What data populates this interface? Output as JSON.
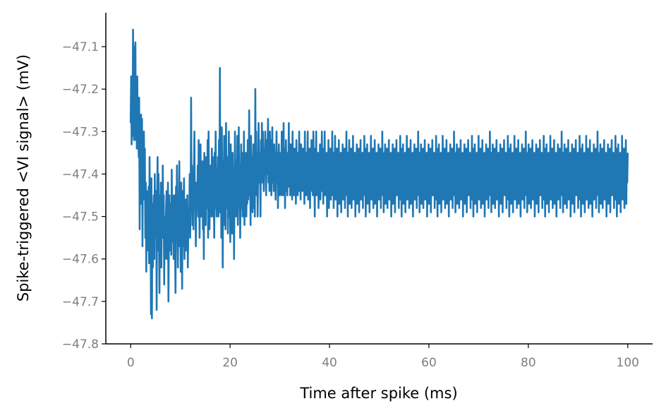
{
  "chart_data": {
    "type": "line",
    "title": "",
    "xlabel": "Time after spike (ms)",
    "ylabel": "Spike-triggered <VI signal> (mV)",
    "xlim": [
      -5,
      105
    ],
    "ylim": [
      -47.8,
      -47.02
    ],
    "x_ticks": [
      0,
      20,
      40,
      60,
      80,
      100
    ],
    "x_tick_labels": [
      "0",
      "20",
      "40",
      "60",
      "80",
      "100"
    ],
    "y_ticks": [
      -47.8,
      -47.7,
      -47.6,
      -47.5,
      -47.4,
      -47.3,
      -47.2,
      -47.1
    ],
    "y_tick_labels": [
      "−47.8",
      "−47.7",
      "−47.6",
      "−47.5",
      "−47.4",
      "−47.3",
      "−47.2",
      "−47.1"
    ],
    "grid": false,
    "legend": "none",
    "colors": {
      "line": "#1f77b4",
      "axis": "#000000",
      "tick_label": "#7f7f7f"
    },
    "series": [
      {
        "sample_interval_ms": 0.1,
        "x_start": 0,
        "x_end": 100,
        "values": [
          -47.28,
          -47.17,
          -47.33,
          -47.2,
          -47.31,
          -47.06,
          -47.25,
          -47.32,
          -47.1,
          -47.3,
          -47.09,
          -47.32,
          -47.2,
          -47.34,
          -47.17,
          -47.3,
          -47.25,
          -47.36,
          -47.22,
          -47.53,
          -47.32,
          -47.47,
          -47.26,
          -47.35,
          -47.27,
          -47.57,
          -47.31,
          -47.46,
          -47.3,
          -47.4,
          -47.34,
          -47.55,
          -47.42,
          -47.63,
          -47.44,
          -47.51,
          -47.47,
          -47.58,
          -47.43,
          -47.61,
          -47.36,
          -47.5,
          -47.44,
          -47.73,
          -47.41,
          -47.74,
          -47.47,
          -47.62,
          -47.5,
          -47.45,
          -47.6,
          -47.4,
          -47.55,
          -47.52,
          -47.44,
          -47.72,
          -47.46,
          -47.36,
          -47.58,
          -47.4,
          -47.55,
          -47.68,
          -47.45,
          -47.55,
          -47.42,
          -47.62,
          -47.48,
          -47.55,
          -47.38,
          -47.53,
          -47.45,
          -47.66,
          -47.5,
          -47.6,
          -47.56,
          -47.48,
          -47.44,
          -47.6,
          -47.55,
          -47.42,
          -47.7,
          -47.53,
          -47.45,
          -47.58,
          -47.5,
          -47.47,
          -47.59,
          -47.39,
          -47.56,
          -47.45,
          -47.47,
          -47.6,
          -47.52,
          -47.45,
          -47.58,
          -47.68,
          -47.43,
          -47.55,
          -47.38,
          -47.5,
          -47.62,
          -47.45,
          -47.57,
          -47.37,
          -47.55,
          -47.45,
          -47.63,
          -47.42,
          -47.52,
          -47.67,
          -47.44,
          -47.57,
          -47.5,
          -47.41,
          -47.6,
          -47.46,
          -47.52,
          -47.58,
          -47.46,
          -47.56,
          -47.45,
          -47.62,
          -47.54,
          -47.48,
          -47.51,
          -47.4,
          -47.55,
          -47.48,
          -47.22,
          -47.45,
          -47.38,
          -47.52,
          -47.45,
          -47.53,
          -47.4,
          -47.3,
          -47.48,
          -47.42,
          -47.57,
          -47.46,
          -47.42,
          -47.48,
          -47.38,
          -47.5,
          -47.32,
          -47.45,
          -47.55,
          -47.4,
          -47.33,
          -47.5,
          -47.41,
          -47.48,
          -47.37,
          -47.53,
          -47.43,
          -47.6,
          -47.35,
          -47.45,
          -47.4,
          -47.52,
          -47.36,
          -47.44,
          -47.48,
          -47.32,
          -47.55,
          -47.3,
          -47.44,
          -47.53,
          -47.38,
          -47.46,
          -47.42,
          -47.5,
          -47.34,
          -47.45,
          -47.36,
          -47.5,
          -47.42,
          -47.55,
          -47.35,
          -47.48,
          -47.3,
          -47.43,
          -47.5,
          -47.39,
          -47.46,
          -47.36,
          -47.5,
          -47.32,
          -47.49,
          -47.15,
          -47.47,
          -47.34,
          -47.55,
          -47.29,
          -47.41,
          -47.62,
          -47.37,
          -47.52,
          -47.31,
          -47.45,
          -47.4,
          -47.53,
          -47.28,
          -47.42,
          -47.48,
          -47.36,
          -47.54,
          -47.43,
          -47.3,
          -47.5,
          -47.4,
          -47.56,
          -47.33,
          -47.46,
          -47.41,
          -47.54,
          -47.35,
          -47.48,
          -47.39,
          -47.6,
          -47.42,
          -47.3,
          -47.44,
          -47.5,
          -47.37,
          -47.45,
          -47.31,
          -47.52,
          -47.45,
          -47.29,
          -47.47,
          -47.38,
          -47.55,
          -47.42,
          -47.33,
          -47.48,
          -47.35,
          -47.5,
          -47.4,
          -47.45,
          -47.3,
          -47.52,
          -47.38,
          -47.47,
          -47.35,
          -47.5,
          -47.42,
          -47.47,
          -47.32,
          -47.46,
          -47.4,
          -47.25,
          -47.45,
          -47.38,
          -47.52,
          -47.31,
          -47.44,
          -47.36,
          -47.49,
          -47.4,
          -47.33,
          -47.48,
          -47.38,
          -47.5,
          -47.2,
          -47.42,
          -47.3,
          -47.45,
          -47.35,
          -47.5,
          -47.4,
          -47.28,
          -47.42,
          -47.38,
          -47.35,
          -47.5,
          -47.32,
          -47.4,
          -47.28,
          -47.42,
          -47.3,
          -47.38,
          -47.44,
          -47.34,
          -47.4,
          -47.3,
          -47.38,
          -47.45,
          -47.32,
          -47.4,
          -47.35,
          -47.27,
          -47.42,
          -47.35,
          -47.44,
          -47.3,
          -47.39,
          -47.32,
          -47.45,
          -47.37,
          -47.29,
          -47.42,
          -47.36,
          -47.44,
          -47.33,
          -47.4,
          -47.35,
          -47.46,
          -47.38,
          -47.3,
          -47.42,
          -47.35,
          -47.48,
          -47.4,
          -47.33,
          -47.45,
          -47.38,
          -47.42,
          -47.35,
          -47.45,
          -47.3,
          -47.4,
          -47.36,
          -47.45,
          -47.28,
          -47.42,
          -47.34,
          -47.48,
          -47.38,
          -47.32,
          -47.44,
          -47.37,
          -47.45,
          -47.35,
          -47.4,
          -47.28,
          -47.43,
          -47.36,
          -47.45,
          -47.33,
          -47.4,
          -47.36,
          -47.46,
          -47.3,
          -47.42,
          -47.38,
          -47.45,
          -47.34,
          -47.41,
          -47.36,
          -47.47,
          -47.32,
          -47.42,
          -47.38,
          -47.45,
          -47.35,
          -47.4,
          -47.3,
          -47.44,
          -47.37,
          -47.46,
          -47.33,
          -47.42,
          -47.38,
          -47.44,
          -47.34,
          -47.4,
          -47.36,
          -47.47,
          -47.3,
          -47.42,
          -47.37,
          -47.45,
          -47.35,
          -47.4,
          -47.3,
          -47.46,
          -47.36,
          -47.42,
          -47.34,
          -47.48,
          -47.38,
          -47.44,
          -47.32,
          -47.4,
          -47.36,
          -47.45,
          -47.3,
          -47.42,
          -47.38,
          -47.5,
          -47.34,
          -47.4,
          -47.3,
          -47.45,
          -47.38,
          -47.42,
          -47.35,
          -47.48,
          -47.36,
          -47.42,
          -47.33,
          -47.46,
          -47.38,
          -47.42,
          -47.3,
          -47.44,
          -47.36,
          -47.47,
          -47.34,
          -47.4,
          -47.3,
          -47.45,
          -47.38,
          -47.42,
          -47.35,
          -47.5,
          -47.37,
          -47.43,
          -47.32,
          -47.48,
          -47.36,
          -47.42,
          -47.34,
          -47.46,
          -47.38,
          -47.42,
          -47.3,
          -47.45,
          -47.36,
          -47.48,
          -47.35,
          -47.41,
          -47.31,
          -47.46,
          -47.38,
          -47.44,
          -47.34,
          -47.5,
          -47.37,
          -47.43,
          -47.32,
          -47.47,
          -47.36,
          -47.42,
          -47.35,
          -47.49,
          -47.38,
          -47.44,
          -47.33,
          -47.46,
          -47.37,
          -47.42,
          -47.34,
          -47.48,
          -47.36,
          -47.44,
          -47.3,
          -47.45,
          -47.38,
          -47.5,
          -47.35,
          -47.41,
          -47.32,
          -47.47,
          -47.37,
          -47.43,
          -47.34,
          -47.48,
          -47.36,
          -47.44,
          -47.31,
          -47.46,
          -47.38,
          -47.42,
          -47.35,
          -47.5,
          -47.37,
          -47.43,
          -47.33,
          -47.47,
          -47.36,
          -47.41,
          -47.34,
          -47.49,
          -47.38,
          -47.44,
          -47.32,
          -47.46,
          -47.37,
          -47.42,
          -47.35,
          -47.48,
          -47.36,
          -47.43,
          -47.31,
          -47.45,
          -47.38,
          -47.5,
          -47.34,
          -47.41,
          -47.33,
          -47.47,
          -47.37,
          -47.44,
          -47.35,
          -47.49,
          -47.36,
          -47.42,
          -47.31,
          -47.46,
          -47.38,
          -47.43,
          -47.34,
          -47.48,
          -47.37,
          -47.44,
          -47.32,
          -47.47,
          -47.36,
          -47.42,
          -47.35,
          -47.5,
          -47.38,
          -47.43,
          -47.33,
          -47.46,
          -47.37,
          -47.41,
          -47.34,
          -47.48,
          -47.36,
          -47.44,
          -47.3,
          -47.45,
          -47.38,
          -47.49,
          -47.35,
          -47.42,
          -47.33,
          -47.47,
          -47.37,
          -47.43,
          -47.34,
          -47.48,
          -47.36,
          -47.44,
          -47.32,
          -47.46,
          -47.38,
          -47.42,
          -47.35,
          -47.5,
          -47.37,
          -47.43,
          -47.33,
          -47.47,
          -47.36,
          -47.42,
          -47.34,
          -47.49,
          -47.38,
          -47.44,
          -47.32,
          -47.45,
          -47.37,
          -47.42,
          -47.35,
          -47.48,
          -47.36,
          -47.43,
          -47.31,
          -47.46,
          -47.38,
          -47.5,
          -47.34,
          -47.41,
          -47.33,
          -47.47,
          -47.37,
          -47.44,
          -47.35,
          -47.49,
          -47.36,
          -47.42,
          -47.31,
          -47.46,
          -47.38,
          -47.43,
          -47.34,
          -47.48,
          -47.37,
          -47.44,
          -47.32,
          -47.47,
          -47.36,
          -47.42,
          -47.35,
          -47.5,
          -47.38,
          -47.43,
          -47.33,
          -47.46,
          -47.37,
          -47.41,
          -47.34,
          -47.48,
          -47.36,
          -47.44,
          -47.3,
          -47.45,
          -47.38,
          -47.49,
          -47.35,
          -47.42,
          -47.33,
          -47.47,
          -47.37,
          -47.43,
          -47.34,
          -47.48,
          -47.36,
          -47.44,
          -47.32,
          -47.46,
          -47.38,
          -47.42,
          -47.35,
          -47.5,
          -47.37,
          -47.43,
          -47.33,
          -47.47,
          -47.36,
          -47.42,
          -47.34,
          -47.49,
          -47.38,
          -47.44,
          -47.32,
          -47.45,
          -47.37,
          -47.42,
          -47.35,
          -47.48,
          -47.36,
          -47.43,
          -47.31,
          -47.46,
          -47.38,
          -47.5,
          -47.34,
          -47.41,
          -47.33,
          -47.47,
          -47.37,
          -47.44,
          -47.35,
          -47.49,
          -47.36,
          -47.42,
          -47.31,
          -47.46,
          -47.38,
          -47.43,
          -47.34,
          -47.48,
          -47.37,
          -47.44,
          -47.32,
          -47.47,
          -47.36,
          -47.42,
          -47.35,
          -47.5,
          -47.38,
          -47.43,
          -47.33,
          -47.46,
          -47.37,
          -47.41,
          -47.34,
          -47.48,
          -47.36,
          -47.44,
          -47.3,
          -47.45,
          -47.38,
          -47.49,
          -47.35,
          -47.42,
          -47.33,
          -47.47,
          -47.37,
          -47.43,
          -47.34,
          -47.48,
          -47.36,
          -47.44,
          -47.32,
          -47.46,
          -47.38,
          -47.42,
          -47.35,
          -47.5,
          -47.37,
          -47.43,
          -47.33,
          -47.47,
          -47.36,
          -47.42,
          -47.34,
          -47.49,
          -47.38,
          -47.44,
          -47.32,
          -47.45,
          -47.37,
          -47.42,
          -47.35,
          -47.48,
          -47.36,
          -47.43,
          -47.31,
          -47.46,
          -47.38,
          -47.5,
          -47.34,
          -47.41,
          -47.33,
          -47.47,
          -47.37,
          -47.44,
          -47.35,
          -47.49,
          -47.36,
          -47.42,
          -47.31,
          -47.46,
          -47.38,
          -47.43,
          -47.34,
          -47.48,
          -47.37,
          -47.44,
          -47.32,
          -47.47,
          -47.36,
          -47.42,
          -47.35,
          -47.5,
          -47.38,
          -47.43,
          -47.33,
          -47.46,
          -47.37,
          -47.41,
          -47.34,
          -47.48,
          -47.36,
          -47.44,
          -47.3,
          -47.45,
          -47.38,
          -47.49,
          -47.35,
          -47.42,
          -47.33,
          -47.47,
          -47.37,
          -47.43,
          -47.34,
          -47.48,
          -47.36,
          -47.44,
          -47.32,
          -47.46,
          -47.38,
          -47.42,
          -47.35,
          -47.5,
          -47.37,
          -47.43,
          -47.33,
          -47.47,
          -47.36,
          -47.42,
          -47.34,
          -47.49,
          -47.38,
          -47.44,
          -47.32,
          -47.45,
          -47.37,
          -47.42,
          -47.35,
          -47.48,
          -47.36,
          -47.43,
          -47.31,
          -47.46,
          -47.38,
          -47.5,
          -47.34,
          -47.41,
          -47.33,
          -47.47,
          -47.37,
          -47.44,
          -47.35,
          -47.49,
          -47.36,
          -47.42,
          -47.31,
          -47.46,
          -47.38,
          -47.43,
          -47.34,
          -47.48,
          -47.37,
          -47.44,
          -47.32,
          -47.47,
          -47.36,
          -47.42,
          -47.35,
          -47.5,
          -47.38,
          -47.43,
          -47.33,
          -47.46,
          -47.37,
          -47.41,
          -47.34,
          -47.48,
          -47.36,
          -47.44,
          -47.3,
          -47.45,
          -47.38,
          -47.49,
          -47.35,
          -47.42,
          -47.33,
          -47.47,
          -47.37,
          -47.43,
          -47.34,
          -47.48,
          -47.36,
          -47.44,
          -47.32,
          -47.46,
          -47.38,
          -47.42,
          -47.35,
          -47.5,
          -47.37,
          -47.43,
          -47.33,
          -47.47,
          -47.36,
          -47.42,
          -47.34,
          -47.49,
          -47.38,
          -47.44,
          -47.32,
          -47.45,
          -47.37,
          -47.42,
          -47.35,
          -47.48,
          -47.36,
          -47.43,
          -47.31,
          -47.46,
          -47.38,
          -47.5,
          -47.34,
          -47.41,
          -47.33,
          -47.47,
          -47.37,
          -47.44,
          -47.35,
          -47.49,
          -47.36,
          -47.42,
          -47.31,
          -47.46,
          -47.38,
          -47.43,
          -47.34,
          -47.48,
          -47.37,
          -47.44,
          -47.32,
          -47.47,
          -47.36,
          -47.42,
          -47.35,
          -47.5,
          -47.38,
          -47.43,
          -47.33,
          -47.46,
          -47.37,
          -47.41,
          -47.34,
          -47.48,
          -47.36,
          -47.44,
          -47.3,
          -47.45,
          -47.38,
          -47.49,
          -47.35,
          -47.42,
          -47.33,
          -47.47,
          -47.37,
          -47.43,
          -47.34,
          -47.48,
          -47.36,
          -47.44,
          -47.32,
          -47.46,
          -47.38,
          -47.42,
          -47.35,
          -47.5,
          -47.37,
          -47.43,
          -47.33,
          -47.47,
          -47.36,
          -47.42,
          -47.34,
          -47.49,
          -47.38,
          -47.44,
          -47.32,
          -47.45,
          -47.37,
          -47.42,
          -47.35,
          -47.48,
          -47.36,
          -47.43,
          -47.31,
          -47.46,
          -47.38,
          -47.5,
          -47.34,
          -47.41,
          -47.33,
          -47.47,
          -47.37,
          -47.44,
          -47.35,
          -47.49,
          -47.36,
          -47.42,
          -47.31,
          -47.46,
          -47.38,
          -47.43,
          -47.34,
          -47.48,
          -47.37,
          -47.44,
          -47.32,
          -47.47,
          -47.36,
          -47.42,
          -47.35,
          -47.5,
          -47.38,
          -47.43,
          -47.33,
          -47.46,
          -47.37,
          -47.41,
          -47.34,
          -47.48,
          -47.36,
          -47.44,
          -47.3,
          -47.45,
          -47.38,
          -47.49,
          -47.35,
          -47.42,
          -47.33,
          -47.47,
          -47.37,
          -47.43,
          -47.34,
          -47.48,
          -47.36,
          -47.44,
          -47.32,
          -47.46,
          -47.38,
          -47.42,
          -47.35,
          -47.5,
          -47.37,
          -47.43,
          -47.33,
          -47.47,
          -47.36,
          -47.42,
          -47.34,
          -47.49,
          -47.38,
          -47.44,
          -47.32,
          -47.45,
          -47.37,
          -47.42,
          -47.35,
          -47.48,
          -47.36,
          -47.43,
          -47.31,
          -47.46,
          -47.38,
          -47.5,
          -47.34,
          -47.41,
          -47.33,
          -47.47,
          -47.37,
          -47.44,
          -47.35,
          -47.49,
          -47.36,
          -47.42,
          -47.31,
          -47.46,
          -47.38,
          -47.43,
          -47.34,
          -47.48,
          -47.37,
          -47.44,
          -47.32,
          -47.47,
          -47.36,
          -47.42,
          -47.35
        ]
      }
    ]
  }
}
